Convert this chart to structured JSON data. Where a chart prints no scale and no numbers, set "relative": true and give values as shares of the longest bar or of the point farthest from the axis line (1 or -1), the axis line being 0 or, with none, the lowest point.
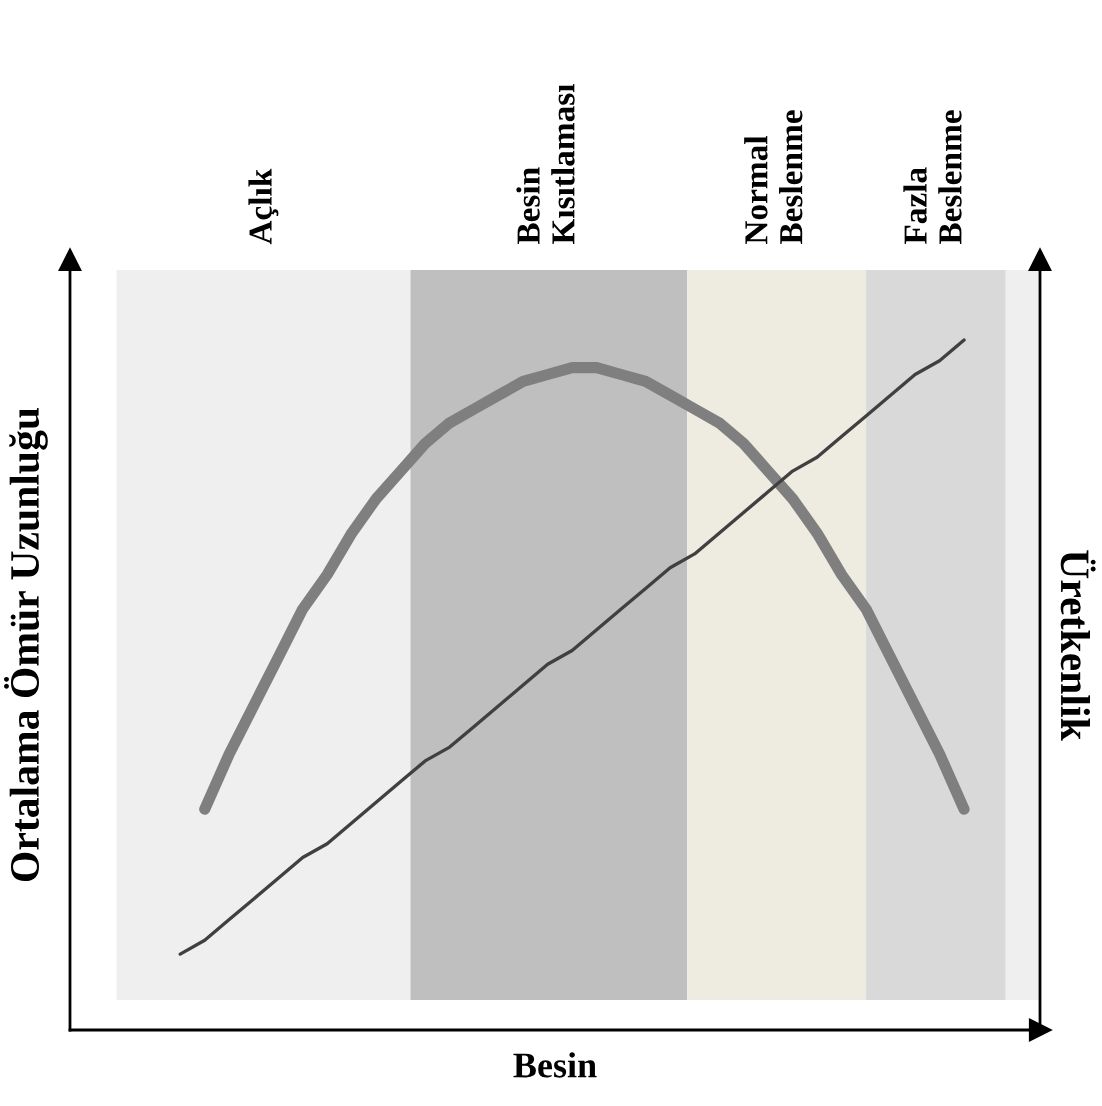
{
  "chart_data": {
    "type": "line",
    "relative": true,
    "xlabel": "Besin",
    "ylabel": "Ortalama Ömür Uzunluğu",
    "y2label": "Üretkenlik",
    "legend": false,
    "marker": "none",
    "line_style": "solid",
    "categories": [
      null,
      null,
      null,
      null,
      null,
      null,
      null,
      null,
      null,
      null,
      null,
      null,
      null,
      null,
      null,
      null,
      null,
      null,
      null,
      null,
      null,
      null,
      null,
      null,
      null,
      null,
      null,
      null,
      null,
      null,
      null,
      null,
      null
    ],
    "series": [
      {
        "color": "#7f7f7f",
        "values": [
          null,
          0.32,
          0.4,
          0.47,
          0.54,
          0.61,
          0.66,
          0.72,
          0.77,
          0.81,
          0.85,
          0.88,
          0.9,
          0.92,
          0.94,
          0.95,
          0.96,
          0.96,
          0.95,
          0.94,
          0.92,
          0.9,
          0.88,
          0.85,
          0.81,
          0.77,
          0.72,
          0.66,
          0.61,
          0.54,
          0.47,
          0.4,
          0.32
        ]
      },
      {
        "color": "#404040",
        "values": [
          0.11,
          0.13,
          0.16,
          0.19,
          0.22,
          0.25,
          0.27,
          0.3,
          0.33,
          0.36,
          0.39,
          0.41,
          0.44,
          0.47,
          0.5,
          0.53,
          0.55,
          0.58,
          0.61,
          0.64,
          0.67,
          0.69,
          0.72,
          0.75,
          0.78,
          0.81,
          0.83,
          0.86,
          0.89,
          0.92,
          0.95,
          0.97,
          1.0
        ]
      }
    ],
    "annotations": [
      "Açlık",
      "Besin\nKısıtlaması",
      "Normal\nBeslenme",
      "Fazla\nBeslenme"
    ]
  }
}
